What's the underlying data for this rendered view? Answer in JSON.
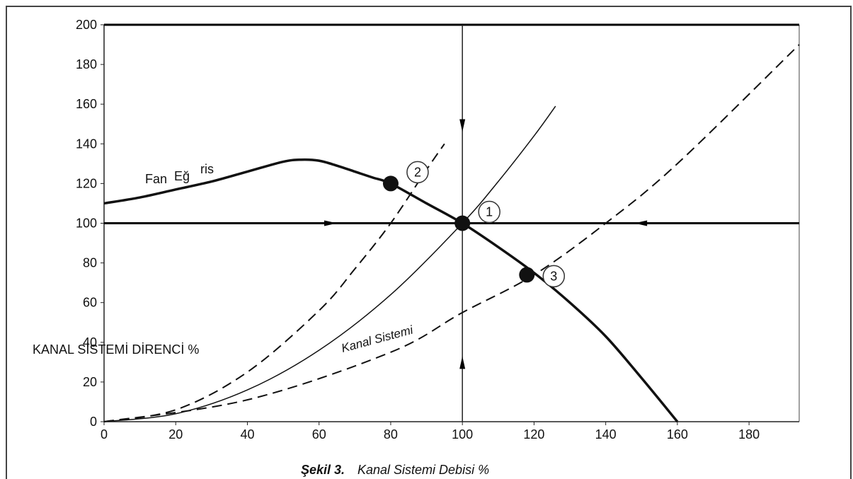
{
  "chart_data": {
    "type": "line",
    "title": "",
    "caption_bold": "Şekil 3.",
    "caption_text": "Kanal Sistemi Debisi %",
    "ylabel": "KANAL SİSTEMİ DİRENCİ %",
    "xlim": [
      0,
      194
    ],
    "ylim": [
      0,
      200
    ],
    "x_ticks": [
      0,
      20,
      40,
      60,
      80,
      100,
      120,
      140,
      160,
      180
    ],
    "y_ticks": [
      0,
      20,
      40,
      60,
      80,
      100,
      120,
      140,
      160,
      180,
      200
    ],
    "grid": false,
    "series": [
      {
        "name": "Fan Eğrisi",
        "style": "solid-bold",
        "x": [
          0,
          10,
          20,
          30,
          40,
          50,
          55,
          60,
          65,
          70,
          75,
          80,
          90,
          100,
          110,
          120,
          130,
          140,
          150,
          160
        ],
        "y": [
          110,
          113,
          117,
          121,
          126,
          131,
          132,
          131.5,
          129,
          126,
          123,
          120,
          110,
          100,
          88,
          75,
          60,
          43,
          22,
          0
        ]
      },
      {
        "name": "Kanal Sistemi",
        "style": "solid",
        "x": [
          0,
          20,
          40,
          60,
          80,
          100,
          110,
          120,
          126
        ],
        "y": [
          0,
          4,
          16,
          36,
          64,
          100,
          121,
          144,
          159
        ]
      },
      {
        "name": "Kanal Sistemi",
        "style": "dashed",
        "x": [
          0,
          20,
          40,
          60,
          70,
          80,
          90,
          95
        ],
        "y": [
          0,
          6,
          25,
          56,
          77,
          100,
          127,
          140
        ]
      },
      {
        "name": "Kanal Sistemi",
        "style": "dashed",
        "x": [
          0,
          40,
          80,
          100,
          120,
          140,
          160,
          194
        ],
        "y": [
          0,
          11,
          35,
          55,
          74,
          100,
          130,
          190
        ]
      }
    ],
    "reference_lines": [
      {
        "orientation": "horizontal",
        "y": 100
      },
      {
        "orientation": "horizontal",
        "y": 200
      },
      {
        "orientation": "vertical",
        "x": 100
      }
    ],
    "points": [
      {
        "label": "1",
        "x": 100,
        "y": 100
      },
      {
        "label": "2",
        "x": 80,
        "y": 120
      },
      {
        "label": "3",
        "x": 118,
        "y": 74
      }
    ],
    "annotations": [
      {
        "text": "Fan",
        "position": "upper-left"
      },
      {
        "text": "Eğ",
        "position": "upper-left"
      },
      {
        "text": "ris",
        "position": "upper-left"
      },
      {
        "text": "Kanal Sistemi",
        "position": "center"
      }
    ]
  }
}
